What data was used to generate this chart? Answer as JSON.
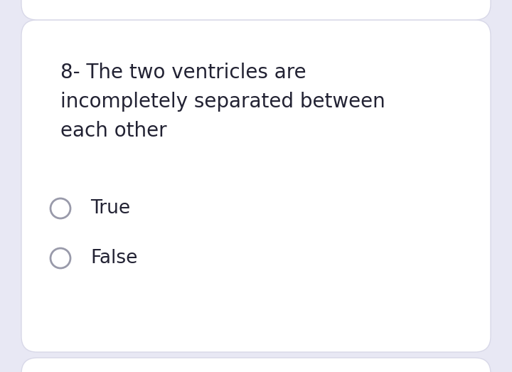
{
  "background_color": "#e8e8f4",
  "card_color": "#ffffff",
  "question_text": "8- The two ventricles are\nincompletely separated between\neach other",
  "options": [
    "True",
    "False"
  ],
  "text_color": "#222233",
  "option_circle_color": "#999aaa",
  "question_fontsize": 20,
  "option_fontsize": 19,
  "top_strip_color": "#e8e8f4",
  "bottom_strip_color": "#e8e8f4",
  "card_edge_color": "#d8d8e8"
}
